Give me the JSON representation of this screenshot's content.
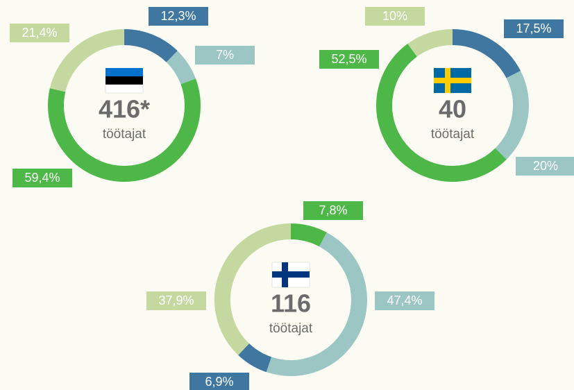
{
  "chart_data": [
    {
      "type": "donut",
      "center_label": "416*",
      "center_sublabel": "töötajat",
      "values": [
        12.3,
        7,
        59.4,
        21.4
      ],
      "value_labels": [
        "12,3%",
        "7%",
        "59,4%",
        "21,4%"
      ],
      "colors": [
        "#3f77a0",
        "#9bc6c4",
        "#4db848",
        "#c4d8a0"
      ]
    },
    {
      "type": "donut",
      "center_label": "40",
      "center_sublabel": "töötajat",
      "values": [
        17.5,
        20,
        52.5,
        10
      ],
      "value_labels": [
        "17,5%",
        "20%",
        "52,5%",
        "10%"
      ],
      "colors": [
        "#3f77a0",
        "#9bc6c4",
        "#4db848",
        "#c4d8a0"
      ]
    },
    {
      "type": "donut",
      "center_label": "116",
      "center_sublabel": "töötajat",
      "values": [
        7.8,
        47.4,
        6.9,
        37.9
      ],
      "value_labels": [
        "7,8%",
        "47,4%",
        "6,9%",
        "37,9%"
      ],
      "colors": [
        "#4db848",
        "#9bc6c4",
        "#3f77a0",
        "#c4d8a0"
      ]
    }
  ]
}
